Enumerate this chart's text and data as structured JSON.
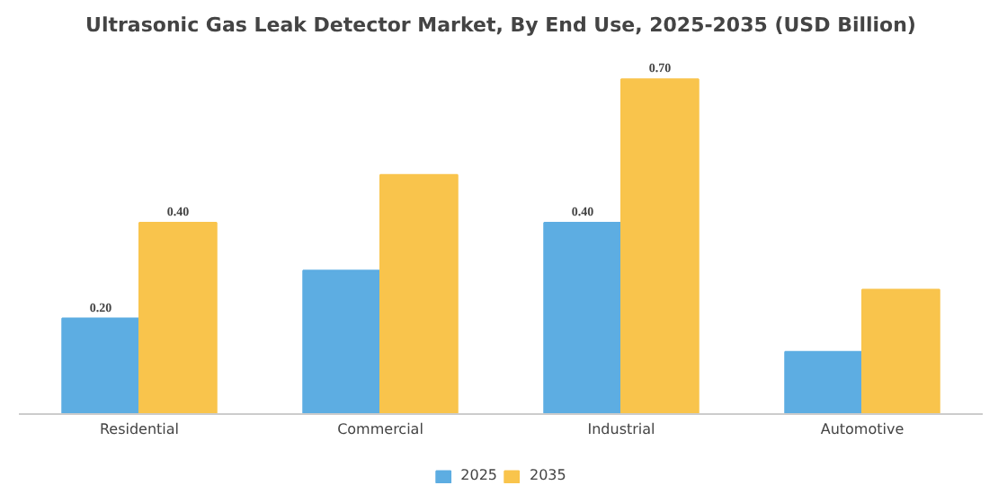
{
  "chart_data": {
    "type": "bar",
    "title": "Ultrasonic Gas Leak Detector Market, By End Use, 2025-2035 (USD Billion)",
    "categories": [
      "Residential",
      "Commercial",
      "Industrial",
      "Automotive"
    ],
    "series": [
      {
        "name": "2025",
        "color": "#5dade2",
        "values": [
          0.2,
          0.3,
          0.4,
          0.13
        ],
        "value_labels": [
          "0.20",
          null,
          "0.40",
          null
        ]
      },
      {
        "name": "2035",
        "color": "#f9c44c",
        "values": [
          0.4,
          0.5,
          0.7,
          0.26
        ],
        "value_labels": [
          "0.40",
          null,
          "0.70",
          null
        ]
      }
    ],
    "legend": "bottom"
  }
}
